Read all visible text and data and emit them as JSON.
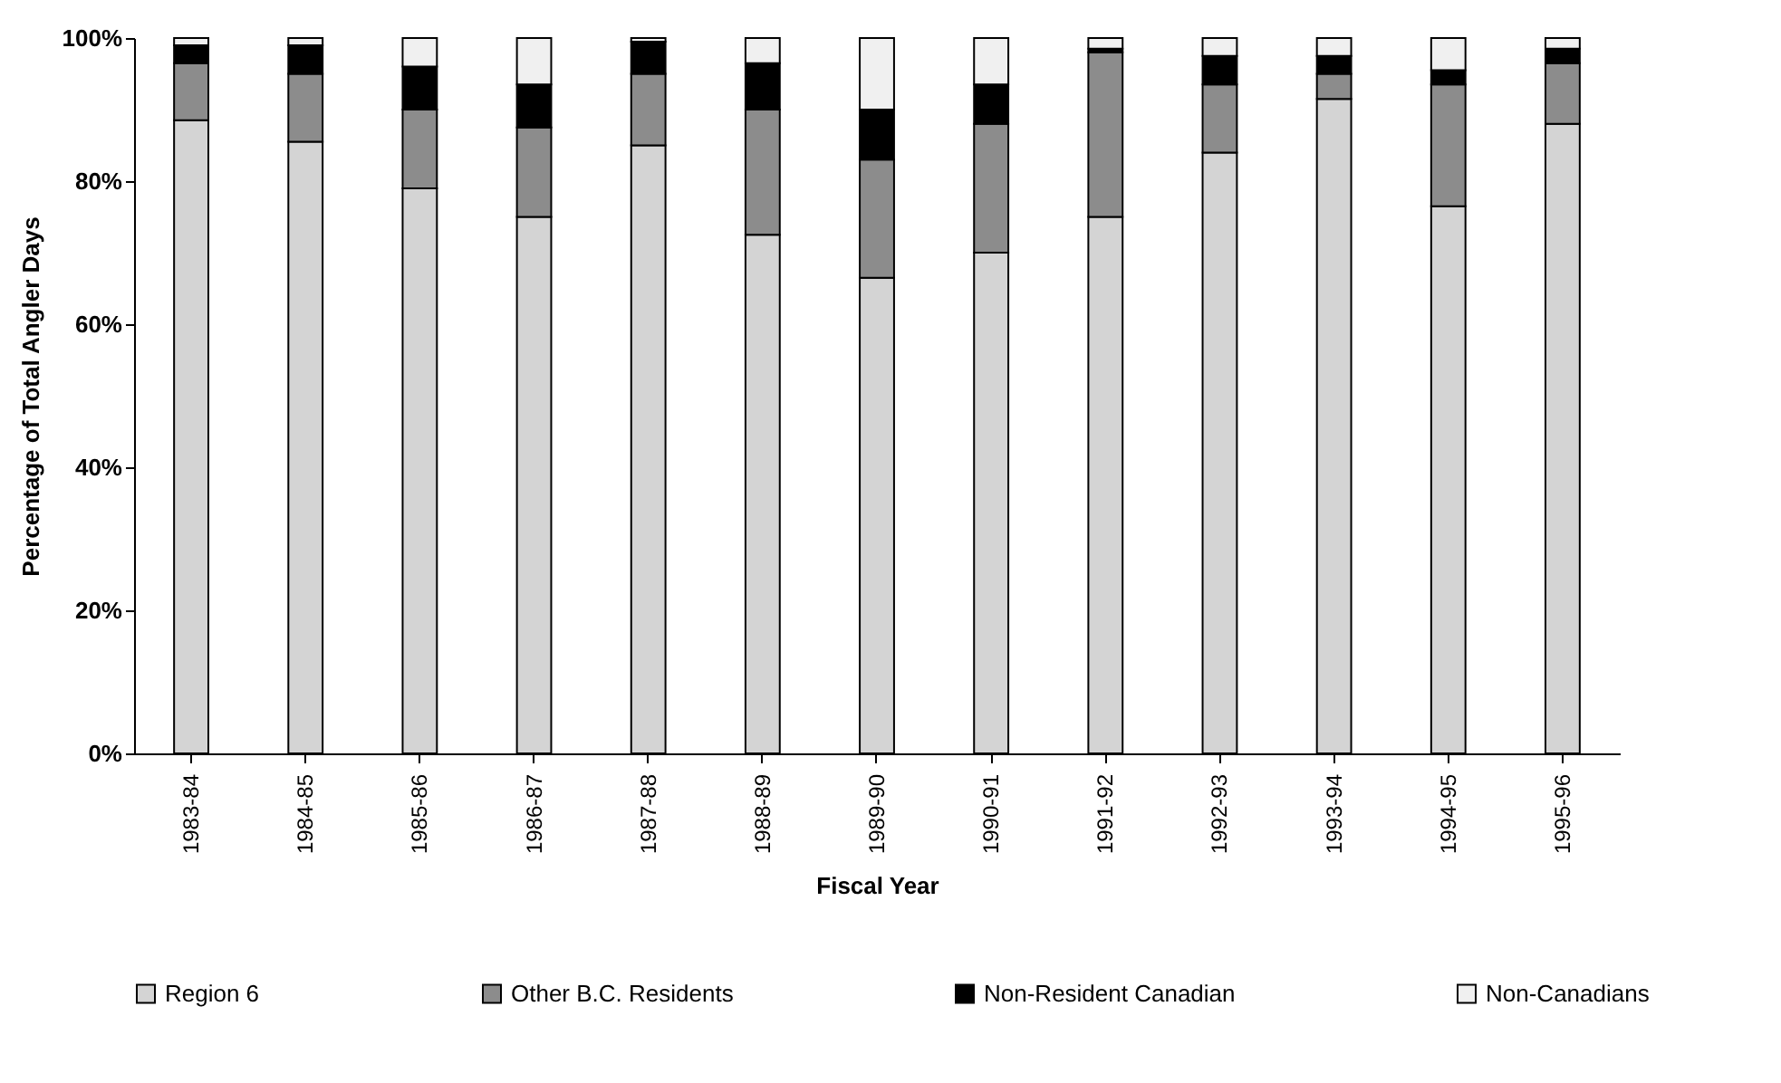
{
  "chart_data": {
    "type": "bar",
    "stacked": true,
    "xlabel": "Fiscal Year",
    "ylabel": "Percentage of Total Angler Days",
    "categories": [
      "1983-84",
      "1984-85",
      "1985-86",
      "1986-87",
      "1987-88",
      "1988-89",
      "1989-90",
      "1990-91",
      "1991-92",
      "1992-93",
      "1993-94",
      "1994-95",
      "1995-96"
    ],
    "series": [
      {
        "name": "Region 6",
        "color": "#d4d4d4",
        "values": [
          88.5,
          85.5,
          79,
          75,
          85,
          72.5,
          66.5,
          70,
          75,
          84,
          91.5,
          76.5,
          88
        ]
      },
      {
        "name": "Other B.C. Residents",
        "color": "#8c8c8c",
        "values": [
          8,
          9.5,
          11,
          12.5,
          10,
          17.5,
          16.5,
          18,
          23,
          9.5,
          3.5,
          17,
          8.5
        ]
      },
      {
        "name": "Non-Resident Canadian",
        "color": "#000000",
        "values": [
          2.5,
          4,
          6,
          6,
          4.5,
          6.5,
          7,
          5.5,
          0.5,
          4,
          2.5,
          2,
          2
        ]
      },
      {
        "name": "Non-Canadians",
        "color": "#f0f0f0",
        "values": [
          1,
          1,
          4,
          6.5,
          0.5,
          3.5,
          10,
          6.5,
          1.5,
          2.5,
          2.5,
          4.5,
          1.5
        ]
      }
    ],
    "ylim": [
      0,
      100
    ],
    "yticks": [
      {
        "value": 0,
        "label": "0%"
      },
      {
        "value": 20,
        "label": "20%"
      },
      {
        "value": 40,
        "label": "40%"
      },
      {
        "value": 60,
        "label": "60%"
      },
      {
        "value": 80,
        "label": "80%"
      },
      {
        "value": 100,
        "label": "100%"
      }
    ],
    "legend": "bottom"
  }
}
